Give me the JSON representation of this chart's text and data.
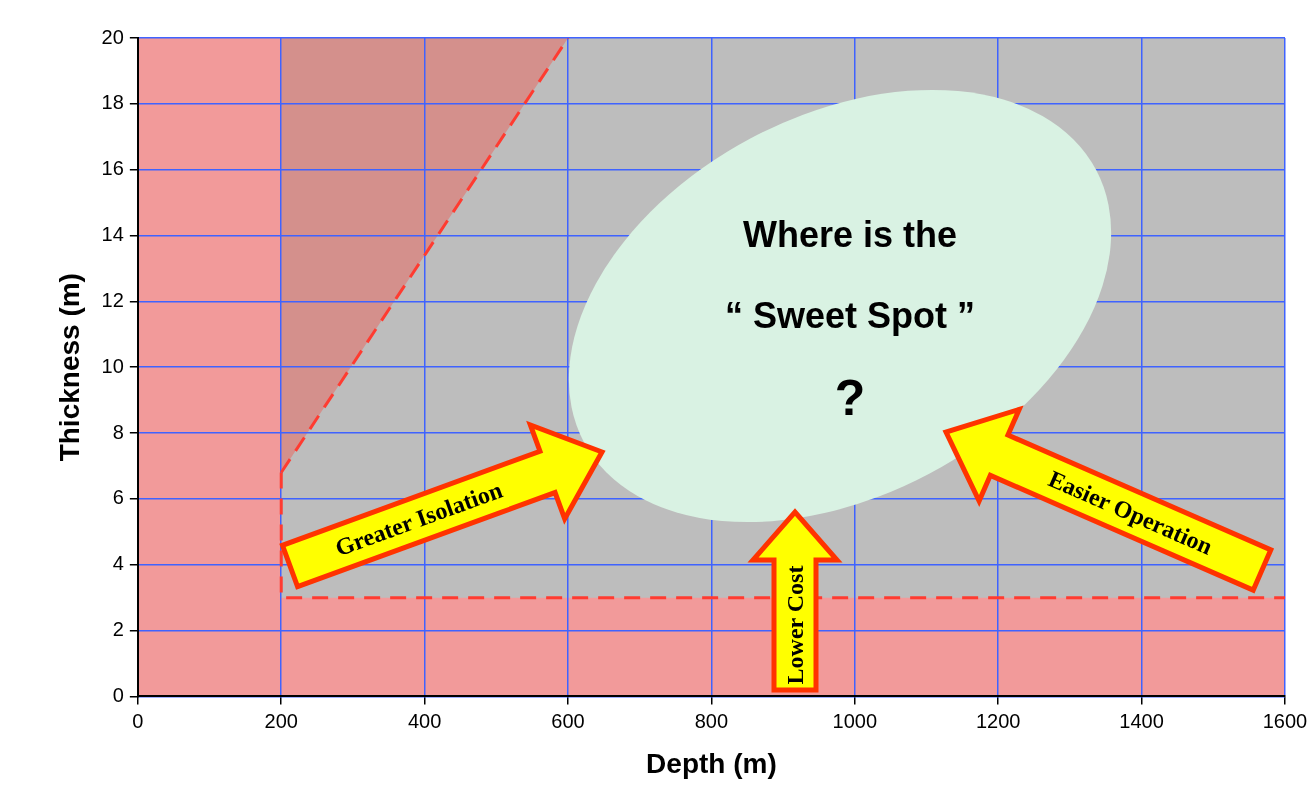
{
  "chart_data": {
    "type": "line",
    "xlabel": "Depth (m)",
    "ylabel": "Thickness (m)",
    "xlim": [
      0,
      1600
    ],
    "xticks": [
      0,
      200,
      400,
      600,
      800,
      1000,
      1200,
      1400,
      1600
    ],
    "ylim": [
      0,
      20
    ],
    "yticks": [
      0,
      2,
      4,
      6,
      8,
      10,
      12,
      14,
      16,
      18,
      20
    ],
    "grid": true,
    "legend": false,
    "marker": "none",
    "line_style": "dashed",
    "series": [
      {
        "color": "#ff3b30",
        "x": [
          200,
          600
        ],
        "values": [
          6.8,
          20
        ],
        "lower": [
          6.8,
          20
        ],
        "upper": [
          20,
          20
        ]
      },
      {
        "color": "#ff3b30",
        "x": [
          200,
          200,
          1600
        ],
        "values": [
          6.8,
          3,
          3
        ]
      }
    ],
    "bands": [
      {
        "axis": "x",
        "from": 0,
        "to": 200,
        "color": "#f29a9a"
      },
      {
        "axis": "y",
        "from": 0,
        "to": 3,
        "color": "#f29a9a"
      }
    ],
    "annotations": [
      "Where is the",
      "“ Sweet Spot ”",
      "?",
      "Greater Isolation",
      "Lower Cost",
      "Easier Operation"
    ]
  }
}
